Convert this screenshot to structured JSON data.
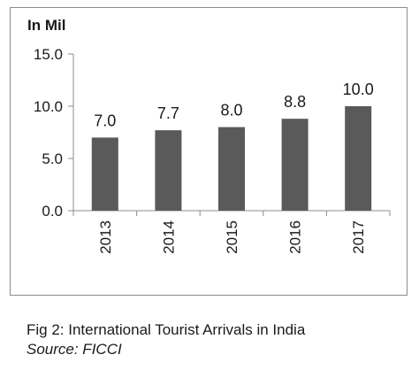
{
  "chart_data": {
    "type": "bar",
    "unit_label": "In Mil",
    "categories": [
      "2013",
      "2014",
      "2015",
      "2016",
      "2017"
    ],
    "values": [
      7.0,
      7.7,
      8.0,
      8.8,
      10.0
    ],
    "data_labels": [
      "7.0",
      "7.7",
      "8.0",
      "8.8",
      "10.0"
    ],
    "y_ticks": [
      0,
      5,
      10,
      15
    ],
    "y_tick_labels": [
      "0.0",
      "5.0",
      "10.0",
      "15.0"
    ],
    "ylim": [
      0,
      15
    ],
    "grid": false,
    "legend": "none",
    "bar_color": "#5a5a5a"
  },
  "caption": {
    "title": "Fig 2: International Tourist Arrivals in India",
    "source": "Source: FICCI"
  }
}
